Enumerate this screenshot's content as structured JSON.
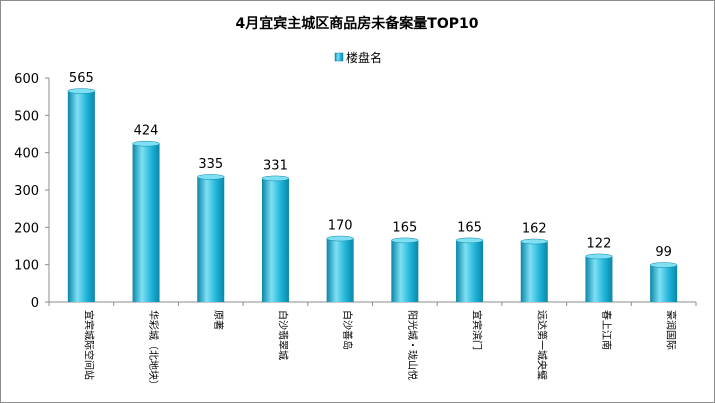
{
  "chart_data": {
    "type": "bar",
    "title": "4月宜宾主城区商品房未备案量TOP10",
    "legend": {
      "label": "楼盘名",
      "position": "top-center"
    },
    "categories": [
      "宜宾城际空间站",
      "华彩城（北地块）",
      "原著",
      "白沙翡翠城",
      "白沙善岛",
      "阳光城・珑山悦",
      "宜宾滨门",
      "远达第一城央璧",
      "春上江南",
      "豪润国际"
    ],
    "values": [
      565,
      424,
      335,
      331,
      170,
      165,
      165,
      162,
      122,
      99
    ],
    "series": [
      {
        "name": "楼盘名",
        "values": [
          565,
          424,
          335,
          331,
          170,
          165,
          165,
          162,
          122,
          99
        ]
      }
    ],
    "ylim": [
      0,
      600
    ],
    "yticks": [
      0,
      100,
      200,
      300,
      400,
      500,
      600
    ],
    "xlabel": "",
    "ylabel": "",
    "grid": false,
    "colors": {
      "bar": "#1fb4d8",
      "bar_light": "#7fe0f4",
      "bar_dark": "#0a86a8",
      "axis": "#8c8c8c"
    }
  }
}
